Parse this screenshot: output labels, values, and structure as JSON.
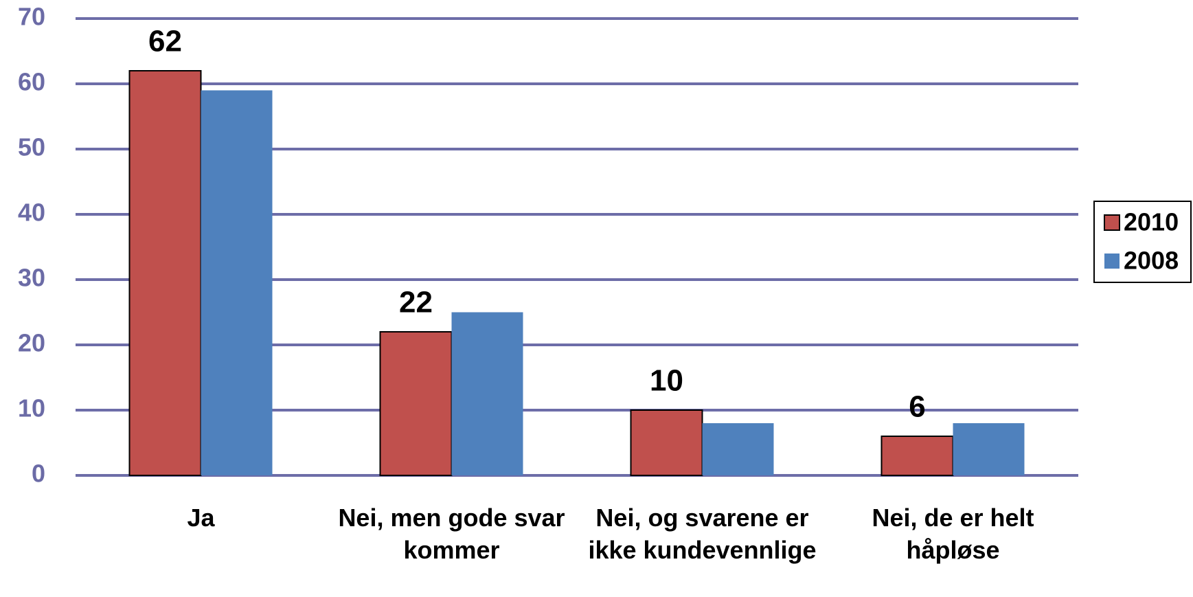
{
  "chart_data": {
    "type": "bar",
    "categories": [
      "Ja",
      "Nei, men gode svar kommer",
      "Nei, og svarene er ikke kundevennlige",
      "Nei, de er helt håpløse"
    ],
    "series": [
      {
        "name": "2010",
        "color": "#c0504d",
        "values": [
          62,
          22,
          10,
          6
        ],
        "data_labels": true
      },
      {
        "name": "2008",
        "color": "#4f81bd",
        "values": [
          59,
          25,
          8,
          8
        ],
        "data_labels": false
      }
    ],
    "ylim": [
      0,
      70
    ],
    "yticks": [
      0,
      10,
      20,
      30,
      40,
      50,
      60,
      70
    ],
    "grid": true,
    "legend": "right"
  }
}
